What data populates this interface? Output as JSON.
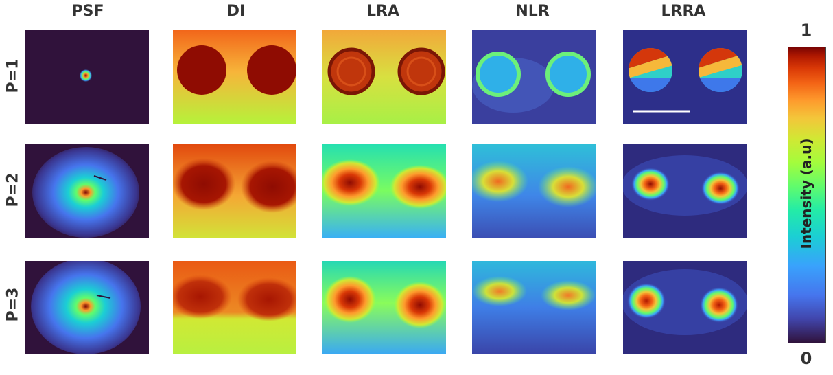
{
  "columns": [
    "PSF",
    "DI",
    "LRA",
    "NLR",
    "LRRA"
  ],
  "rows": [
    "P=1",
    "P=2",
    "P=3"
  ],
  "colorbar": {
    "max_label": "1",
    "min_label": "0",
    "title": "Intensity (a.u)"
  },
  "colormap": "turbo",
  "colors": {
    "background_dark": "#30123b",
    "peak": "#7a0403",
    "scale_bar": "#ffffff"
  }
}
